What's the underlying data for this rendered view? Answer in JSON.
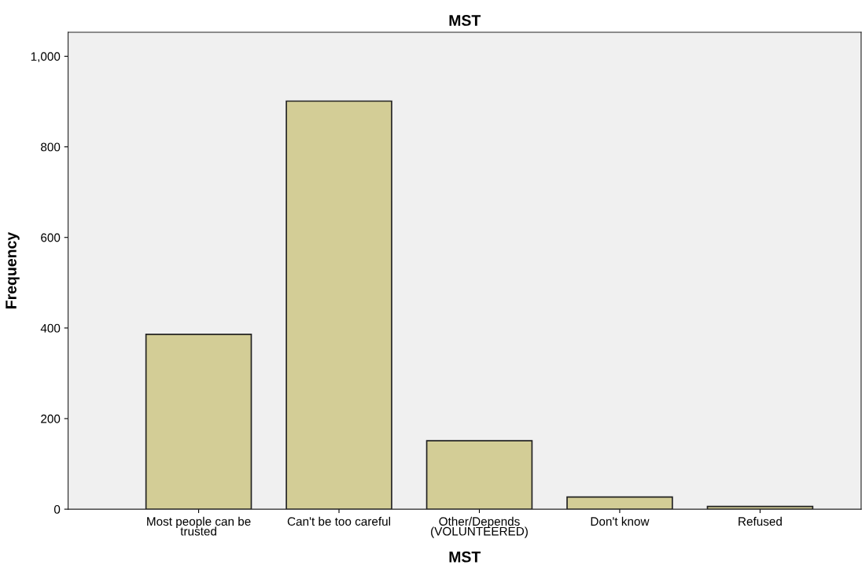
{
  "chart_data": {
    "type": "bar",
    "title": "MST",
    "xlabel": "MST",
    "ylabel": "Frequency",
    "categories": [
      "Most people can be\ntrusted",
      "Can't be too careful",
      "Other/Depends\n(VOLUNTEERED)",
      "Don't know",
      "Refused"
    ],
    "values": [
      386,
      901,
      151,
      27,
      6
    ],
    "color": "#d3cd96",
    "ylim": [
      0,
      1053
    ],
    "yticks": [
      0,
      200,
      400,
      600,
      800,
      {
        "value": 1000,
        "label": "1,000"
      }
    ],
    "grid": false,
    "legend": false
  }
}
